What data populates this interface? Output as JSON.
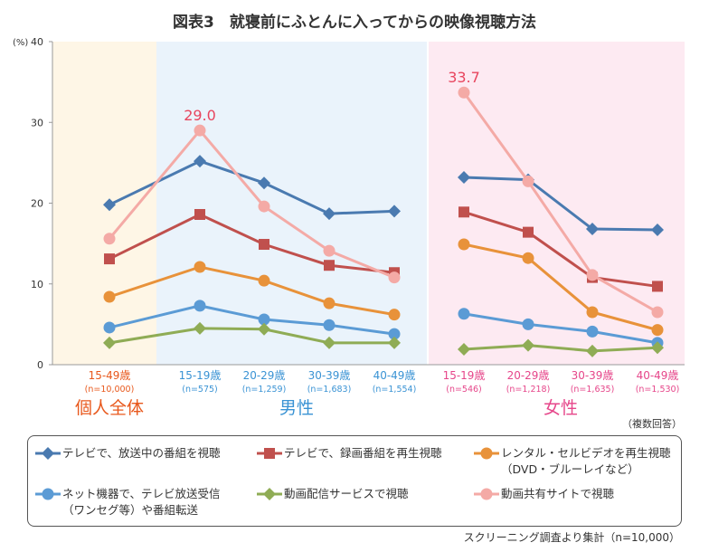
{
  "chart_data": {
    "type": "line",
    "title": "図表3　就寝前にふとんに入ってからの映像視聴方法",
    "yunit": "(%)",
    "ylim": [
      0,
      40
    ],
    "yticks": [
      0,
      10,
      20,
      30,
      40
    ],
    "grid": false,
    "groups": [
      {
        "label": "個人全体",
        "color": "#e8581c",
        "bg": "#fef6e6",
        "categories": [
          {
            "age": "15-49歳",
            "n": "(n=10,000)"
          }
        ]
      },
      {
        "label": "男性",
        "color": "#3a93d4",
        "bg": "#eaf3fb",
        "categories": [
          {
            "age": "15-19歳",
            "n": "(n=575)"
          },
          {
            "age": "20-29歳",
            "n": "(n=1,259)"
          },
          {
            "age": "30-39歳",
            "n": "(n=1,683)"
          },
          {
            "age": "40-49歳",
            "n": "(n=1,554)"
          }
        ]
      },
      {
        "label": "女性",
        "color": "#e6468a",
        "bg": "#fdeaf2",
        "categories": [
          {
            "age": "15-19歳",
            "n": "(n=546)"
          },
          {
            "age": "20-29歳",
            "n": "(n=1,218)"
          },
          {
            "age": "30-39歳",
            "n": "(n=1,635)"
          },
          {
            "age": "40-49歳",
            "n": "(n=1,530)"
          }
        ]
      }
    ],
    "series": [
      {
        "name": "テレビで、放送中の番組を視聴",
        "marker": "diamond",
        "color": "#4a7ab0",
        "values": [
          19.8,
          25.2,
          22.5,
          18.7,
          19.0,
          23.2,
          22.9,
          16.8,
          16.7
        ]
      },
      {
        "name": "テレビで、録画番組を再生視聴",
        "marker": "square",
        "color": "#c0504d",
        "values": [
          13.1,
          18.6,
          14.9,
          12.3,
          11.4,
          18.9,
          16.4,
          10.8,
          9.7
        ]
      },
      {
        "name": "レンタル・セルビデオを再生視聴\n（DVD・ブルーレイなど）",
        "marker": "circle",
        "color": "#e8923a",
        "values": [
          8.4,
          12.1,
          10.4,
          7.6,
          6.2,
          14.9,
          13.2,
          6.5,
          4.3
        ]
      },
      {
        "name": "ネット機器で、テレビ放送受信\n（ワンセグ等）や番組転送",
        "marker": "circle",
        "color": "#5b9bd5",
        "values": [
          4.6,
          7.3,
          5.6,
          4.9,
          3.8,
          6.3,
          5.0,
          4.1,
          2.7
        ]
      },
      {
        "name": "動画配信サービスで視聴",
        "marker": "diamond",
        "color": "#8fac55",
        "values": [
          2.7,
          4.5,
          4.4,
          2.7,
          2.7,
          1.9,
          2.4,
          1.7,
          2.1
        ]
      },
      {
        "name": "動画共有サイトで視聴",
        "marker": "circle",
        "color": "#f4aaa6",
        "values": [
          15.6,
          29.0,
          19.6,
          14.1,
          10.8,
          33.7,
          22.7,
          11.1,
          6.5
        ]
      }
    ],
    "annotations": [
      {
        "text": "29.0",
        "series": 5,
        "index": 1
      },
      {
        "text": "33.7",
        "series": 5,
        "index": 5
      }
    ],
    "annotation_color": "#e8455e"
  },
  "multi_answer": "（複数回答）",
  "source": "スクリーニング調査より集計（n=10,000）"
}
